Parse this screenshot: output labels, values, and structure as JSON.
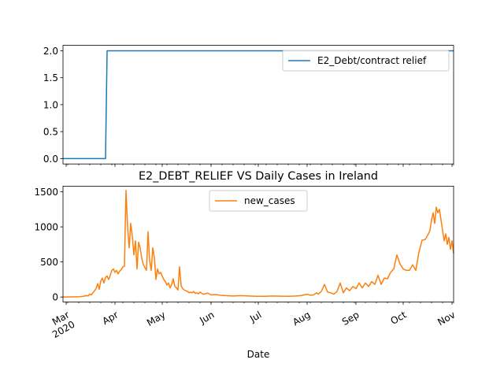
{
  "chart_data": [
    {
      "type": "line",
      "title": "",
      "xlabel": "",
      "ylabel": "",
      "ylim": [
        -0.1,
        2.1
      ],
      "yticks": [
        "0.0",
        "0.5",
        "1.0",
        "1.5",
        "2.0"
      ],
      "legend_placement": "upper right",
      "grid": false,
      "series": [
        {
          "name": "E2_Debt/contract relief",
          "color": "#1f77b4",
          "x": [
            "2020-02-28",
            "2020-03-26",
            "2020-03-27",
            "2020-11-02"
          ],
          "y": [
            0,
            0,
            2,
            2
          ]
        }
      ]
    },
    {
      "type": "line",
      "title": "E2_DEBT_RELIEF VS Daily Cases in Ireland",
      "xlabel": "Date",
      "ylabel": "",
      "ylim": [
        -70,
        1580
      ],
      "yticks": [
        "0",
        "500",
        "1000",
        "1500"
      ],
      "legend_placement": "upper center",
      "grid": false,
      "xtick_labels": [
        "Mar\n2020",
        "Apr",
        "May",
        "Jun",
        "Jul",
        "Aug",
        "Sep",
        "Oct",
        "Nov"
      ],
      "xtick_dates": [
        "2020-03-01",
        "2020-04-01",
        "2020-05-01",
        "2020-06-01",
        "2020-07-01",
        "2020-08-01",
        "2020-09-01",
        "2020-10-01",
        "2020-11-01"
      ],
      "series": [
        {
          "name": "new_cases",
          "color": "#ff7f0e",
          "x": [
            "2020-02-28",
            "2020-03-05",
            "2020-03-10",
            "2020-03-12",
            "2020-03-14",
            "2020-03-15",
            "2020-03-16",
            "2020-03-17",
            "2020-03-18",
            "2020-03-19",
            "2020-03-20",
            "2020-03-21",
            "2020-03-22",
            "2020-03-23",
            "2020-03-24",
            "2020-03-25",
            "2020-03-26",
            "2020-03-27",
            "2020-03-28",
            "2020-03-29",
            "2020-03-30",
            "2020-03-31",
            "2020-04-01",
            "2020-04-02",
            "2020-04-03",
            "2020-04-04",
            "2020-04-05",
            "2020-04-06",
            "2020-04-07",
            "2020-04-08",
            "2020-04-09",
            "2020-04-10",
            "2020-04-11",
            "2020-04-12",
            "2020-04-13",
            "2020-04-14",
            "2020-04-15",
            "2020-04-16",
            "2020-04-17",
            "2020-04-18",
            "2020-04-19",
            "2020-04-20",
            "2020-04-21",
            "2020-04-22",
            "2020-04-23",
            "2020-04-24",
            "2020-04-25",
            "2020-04-26",
            "2020-04-27",
            "2020-04-28",
            "2020-04-29",
            "2020-04-30",
            "2020-05-01",
            "2020-05-02",
            "2020-05-03",
            "2020-05-04",
            "2020-05-05",
            "2020-05-06",
            "2020-05-07",
            "2020-05-08",
            "2020-05-09",
            "2020-05-10",
            "2020-05-11",
            "2020-05-12",
            "2020-05-13",
            "2020-05-14",
            "2020-05-15",
            "2020-05-16",
            "2020-05-17",
            "2020-05-18",
            "2020-05-19",
            "2020-05-20",
            "2020-05-21",
            "2020-05-22",
            "2020-05-23",
            "2020-05-24",
            "2020-05-25",
            "2020-05-27",
            "2020-05-30",
            "2020-06-01",
            "2020-06-04",
            "2020-06-07",
            "2020-06-10",
            "2020-06-15",
            "2020-06-20",
            "2020-06-25",
            "2020-06-30",
            "2020-07-05",
            "2020-07-10",
            "2020-07-15",
            "2020-07-20",
            "2020-07-25",
            "2020-07-28",
            "2020-07-30",
            "2020-08-01",
            "2020-08-03",
            "2020-08-05",
            "2020-08-07",
            "2020-08-08",
            "2020-08-10",
            "2020-08-12",
            "2020-08-14",
            "2020-08-16",
            "2020-08-18",
            "2020-08-20",
            "2020-08-22",
            "2020-08-24",
            "2020-08-26",
            "2020-08-28",
            "2020-08-30",
            "2020-09-01",
            "2020-09-03",
            "2020-09-05",
            "2020-09-07",
            "2020-09-09",
            "2020-09-11",
            "2020-09-13",
            "2020-09-15",
            "2020-09-17",
            "2020-09-19",
            "2020-09-21",
            "2020-09-23",
            "2020-09-25",
            "2020-09-27",
            "2020-09-29",
            "2020-10-01",
            "2020-10-03",
            "2020-10-05",
            "2020-10-07",
            "2020-10-09",
            "2020-10-11",
            "2020-10-13",
            "2020-10-15",
            "2020-10-17",
            "2020-10-18",
            "2020-10-19",
            "2020-10-20",
            "2020-10-21",
            "2020-10-22",
            "2020-10-23",
            "2020-10-24",
            "2020-10-25",
            "2020-10-26",
            "2020-10-27",
            "2020-10-28",
            "2020-10-29",
            "2020-10-30",
            "2020-10-31",
            "2020-11-01",
            "2020-11-02"
          ],
          "y": [
            0,
            2,
            5,
            10,
            20,
            15,
            40,
            30,
            60,
            90,
            120,
            190,
            110,
            230,
            270,
            200,
            280,
            300,
            250,
            310,
            380,
            400,
            350,
            380,
            330,
            370,
            390,
            430,
            440,
            1520,
            1000,
            700,
            1050,
            870,
            600,
            800,
            400,
            780,
            700,
            550,
            460,
            420,
            380,
            930,
            520,
            380,
            700,
            560,
            250,
            400,
            330,
            350,
            300,
            250,
            220,
            170,
            200,
            130,
            180,
            260,
            150,
            130,
            100,
            430,
            160,
            120,
            100,
            90,
            80,
            60,
            70,
            60,
            80,
            50,
            60,
            45,
            70,
            40,
            55,
            30,
            35,
            25,
            20,
            15,
            20,
            15,
            10,
            10,
            15,
            12,
            10,
            15,
            20,
            30,
            40,
            25,
            30,
            60,
            40,
            80,
            180,
            70,
            60,
            40,
            80,
            200,
            60,
            130,
            90,
            150,
            120,
            200,
            130,
            200,
            150,
            220,
            180,
            310,
            180,
            270,
            260,
            350,
            400,
            600,
            470,
            400,
            380,
            380,
            460,
            380,
            640,
            810,
            820,
            900,
            950,
            1100,
            1200,
            1050,
            1280,
            1200,
            1250,
            1100,
            950,
            800,
            900,
            750,
            850,
            680,
            800,
            620
          ]
        }
      ]
    }
  ]
}
